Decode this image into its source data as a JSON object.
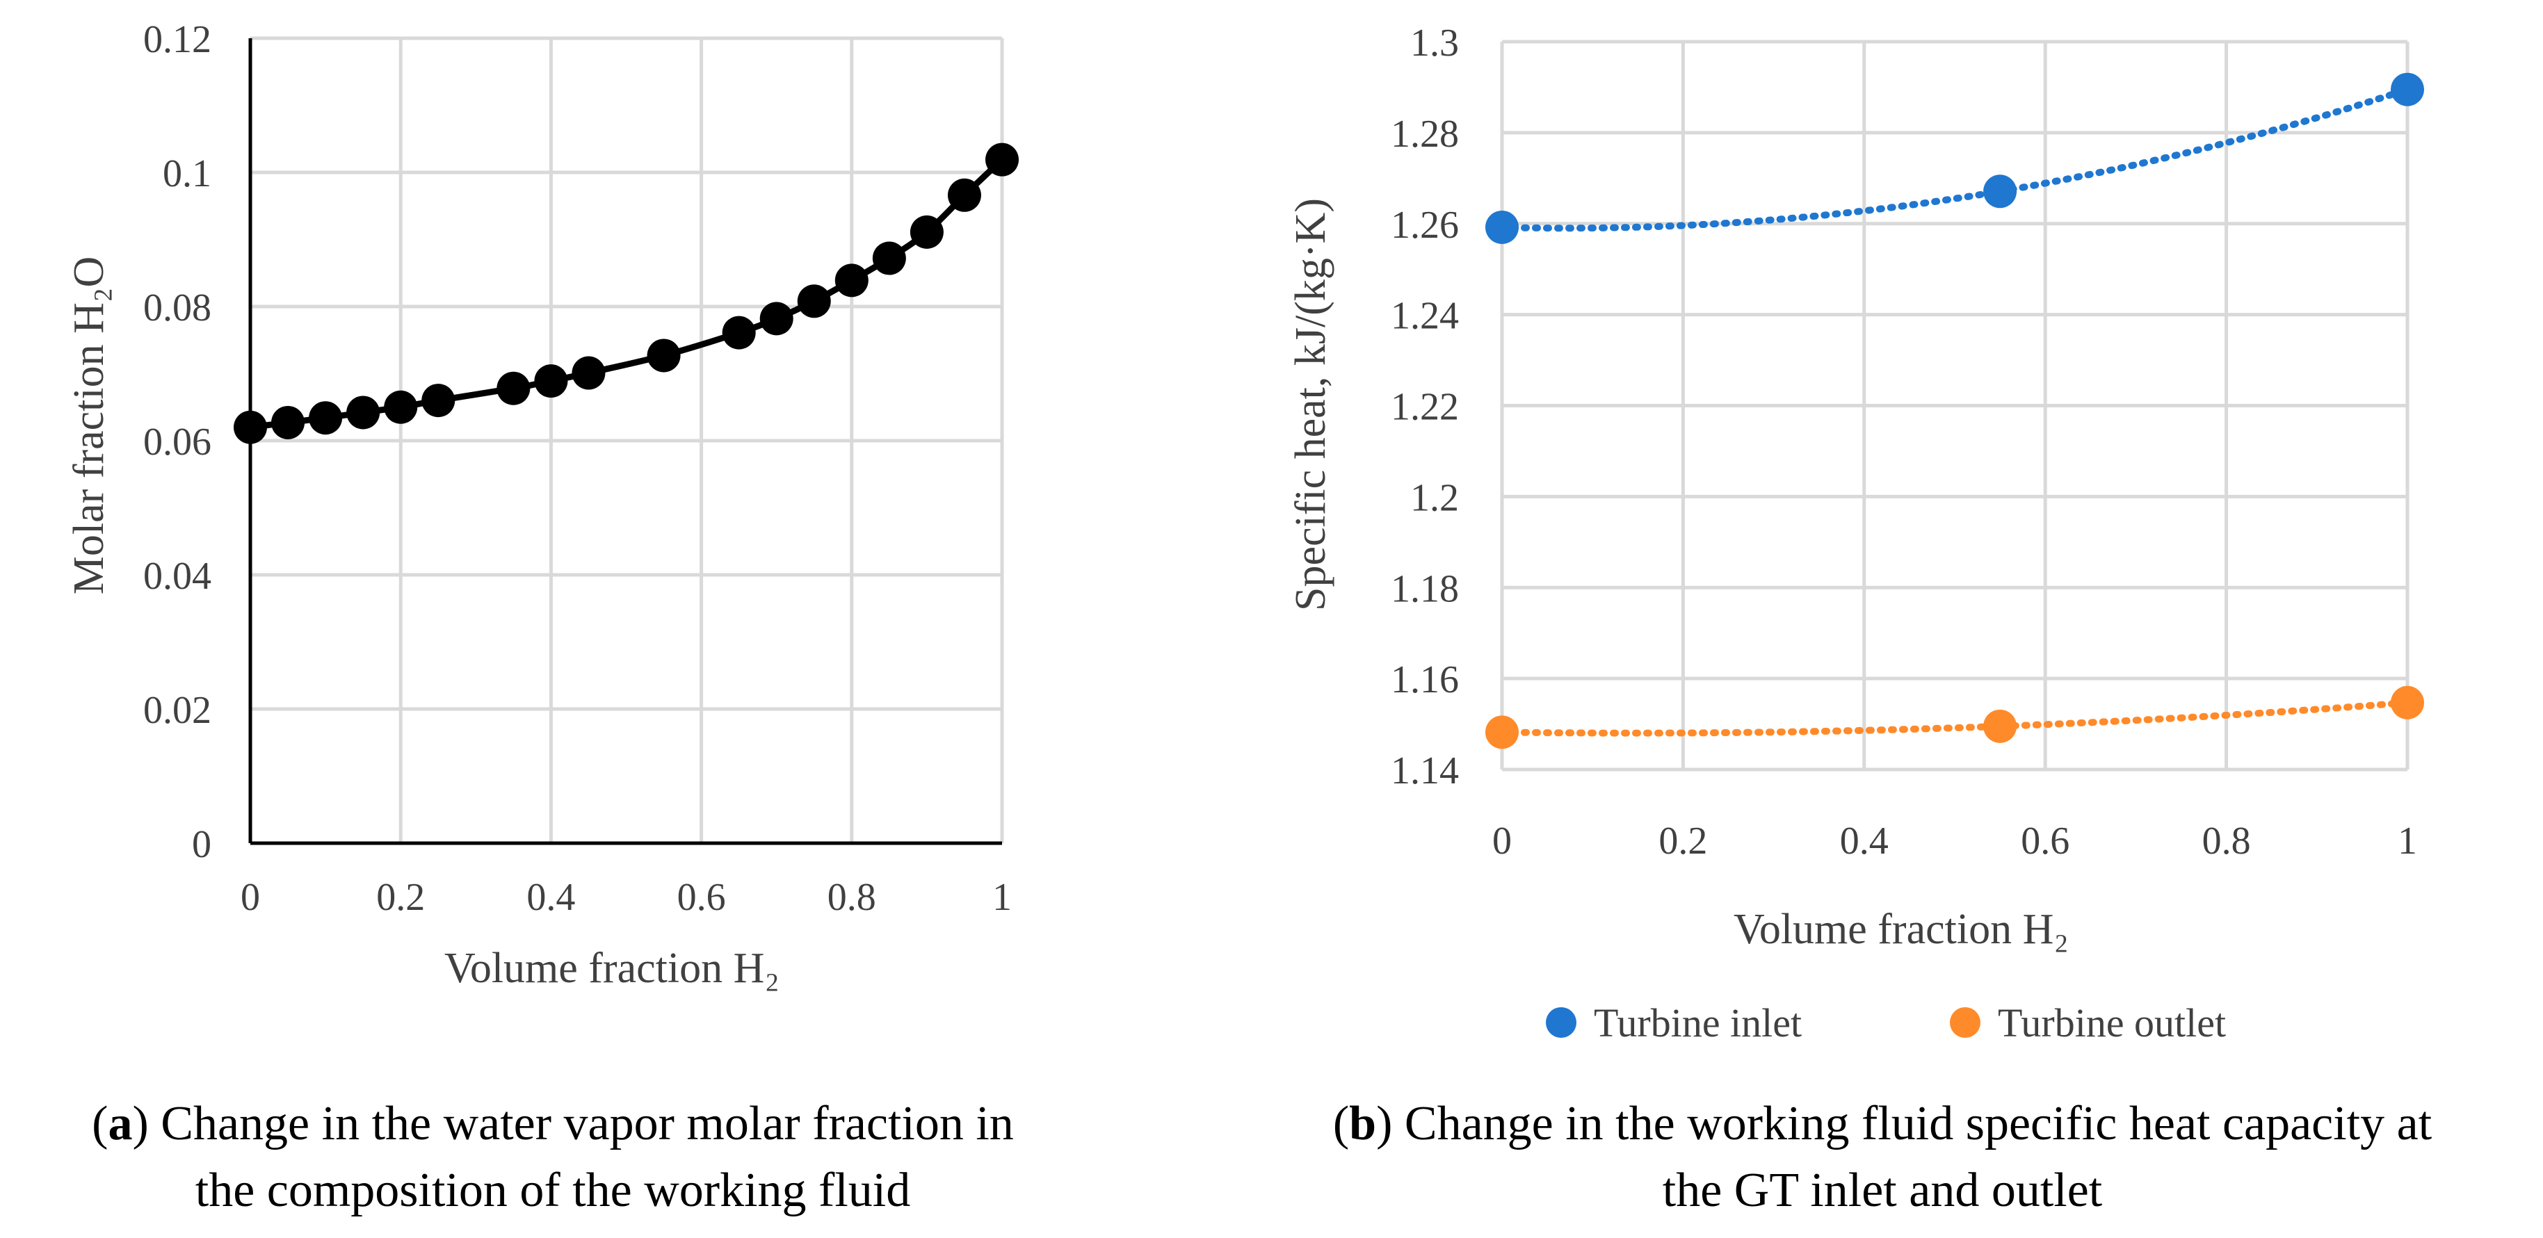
{
  "chart_data": [
    {
      "type": "line",
      "title": "",
      "xlabel": "Volume fraction H₂",
      "ylabel": "Molar fraction H₂O",
      "xlim": [
        0,
        1
      ],
      "ylim": [
        0,
        0.12
      ],
      "xticks": [
        "0",
        "0.2",
        "0.4",
        "0.6",
        "0.8",
        "1"
      ],
      "yticks": [
        "0",
        "0.02",
        "0.04",
        "0.06",
        "0.08",
        "0.1",
        "0.12"
      ],
      "grid": true,
      "series": [
        {
          "name": "Molar fraction H2O",
          "color": "#000000",
          "x": [
            0,
            0.05,
            0.1,
            0.15,
            0.2,
            0.25,
            0.35,
            0.4,
            0.45,
            0.55,
            0.65,
            0.7,
            0.75,
            0.8,
            0.85,
            0.9,
            0.95,
            1.0
          ],
          "y": [
            0.062,
            0.0627,
            0.0634,
            0.0642,
            0.065,
            0.066,
            0.0678,
            0.0689,
            0.0701,
            0.0727,
            0.0761,
            0.0782,
            0.0808,
            0.0839,
            0.0872,
            0.0911,
            0.0966,
            0.1019
          ]
        }
      ],
      "caption": {
        "letter": "a",
        "line1": ") Change in the water vapor molar fraction in",
        "line2": "the composition of the working fluid"
      }
    },
    {
      "type": "scatter",
      "title": "",
      "xlabel": "Volume fraction H₂",
      "ylabel": "Specific heat, kJ/(kg·K)",
      "xlim": [
        0,
        1
      ],
      "ylim": [
        1.14,
        1.3
      ],
      "xticks": [
        "0",
        "0.2",
        "0.4",
        "0.6",
        "0.8",
        "1"
      ],
      "yticks": [
        "1.14",
        "1.16",
        "1.18",
        "1.2",
        "1.22",
        "1.24",
        "1.26",
        "1.28",
        "1.3"
      ],
      "grid": true,
      "legend_position": "bottom",
      "series": [
        {
          "name": "Turbine inlet",
          "color": "#1f77d0",
          "x": [
            0,
            0.55,
            1.0
          ],
          "y": [
            1.2592,
            1.2671,
            1.2895
          ],
          "trendline": "dotted"
        },
        {
          "name": "Turbine outlet",
          "color": "#ff8a2a",
          "x": [
            0,
            0.55,
            1.0
          ],
          "y": [
            1.1482,
            1.1495,
            1.1547
          ],
          "trendline": "dotted"
        }
      ],
      "caption": {
        "letter": "b",
        "line1": ") Change in the working fluid specific heat capacity at",
        "line2": "the GT inlet and outlet"
      }
    }
  ]
}
